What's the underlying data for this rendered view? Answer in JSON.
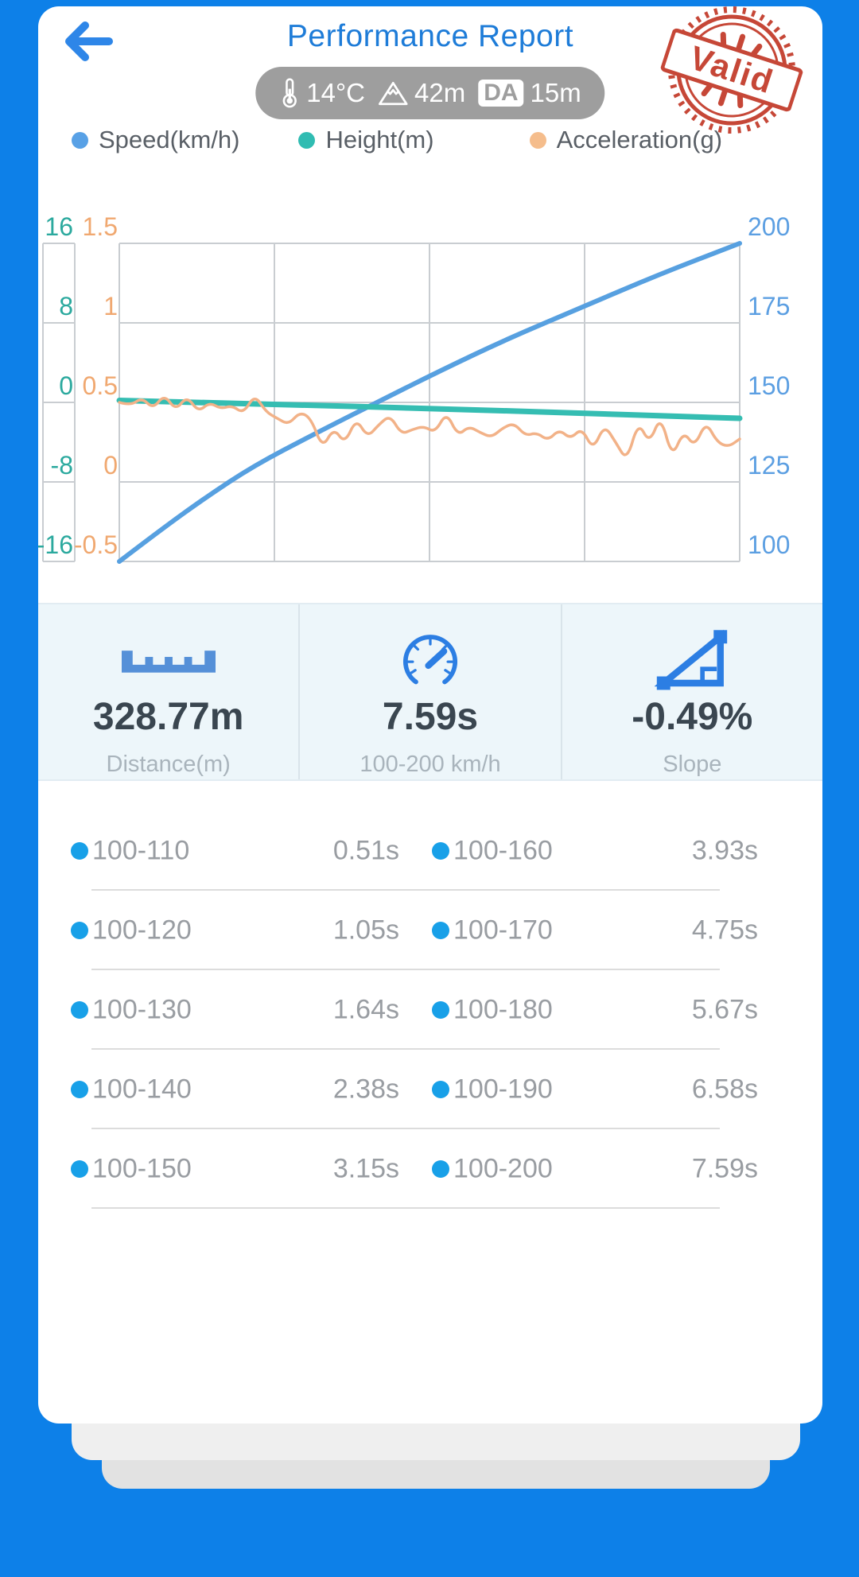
{
  "colors": {
    "background": "#0d80e8",
    "title": "#1e7cd8",
    "back_arrow": "#2e86e8",
    "pill_bg": "#9e9e9e",
    "stamp_red": "#c23a28",
    "grid": "#c9cdd1",
    "bullet": "#18a0e8",
    "stat_value": "#3a4650",
    "stat_label": "#a9b4bc"
  },
  "header": {
    "title": "Performance Report",
    "stamp_text": "Valid",
    "conditions": {
      "temperature": "14°C",
      "altitude": "42m",
      "da_label": "DA",
      "da_value": "15m"
    }
  },
  "legend": [
    {
      "label": "Speed(km/h)",
      "color": "#58a1e6"
    },
    {
      "label": "Height(m)",
      "color": "#30bcb2"
    },
    {
      "label": "Acceleration(g)",
      "color": "#f5bd8c"
    }
  ],
  "chart_data": {
    "type": "line",
    "title": "",
    "xlabel": "",
    "x_range": [
      0,
      7.59
    ],
    "x_gridlines": 5,
    "grid": true,
    "axes": {
      "height_left": {
        "label": "Height(m)",
        "color": "#2ba99e",
        "ticks": [
          16,
          8,
          0,
          -8,
          -16
        ],
        "range": [
          -16,
          16
        ]
      },
      "acceleration_left": {
        "label": "Acceleration(g)",
        "color": "#f0a870",
        "ticks": [
          1.5,
          1,
          0.5,
          0,
          -0.5
        ],
        "range": [
          -0.5,
          1.5
        ]
      },
      "speed_right": {
        "label": "Speed(km/h)",
        "color": "#5c9fe2",
        "ticks": [
          200,
          175,
          150,
          125,
          100
        ],
        "range": [
          100,
          200
        ]
      }
    },
    "series": [
      {
        "name": "Speed(km/h)",
        "axis": "speed_right",
        "color": "#57a0e0",
        "width": 6,
        "x": [
          0,
          0.51,
          1.05,
          1.64,
          2.38,
          3.15,
          3.93,
          4.75,
          5.67,
          6.58,
          7.59
        ],
        "y": [
          100,
          110,
          120,
          130,
          140,
          150,
          160,
          170,
          180,
          190,
          200
        ]
      },
      {
        "name": "Height(m)",
        "axis": "height_left",
        "color": "#35bdb2",
        "width": 7,
        "x": [
          0,
          1.9,
          3.8,
          5.7,
          7.59
        ],
        "y": [
          0.2,
          -0.2,
          -0.6,
          -1.1,
          -1.6
        ]
      },
      {
        "name": "Acceleration(g)",
        "axis": "acceleration_left",
        "color": "#f2b288",
        "width": 3.5,
        "x_even_range": [
          0,
          7.59
        ],
        "y": [
          0.5,
          0.48,
          0.53,
          0.46,
          0.55,
          0.45,
          0.54,
          0.44,
          0.5,
          0.46,
          0.48,
          0.43,
          0.55,
          0.44,
          0.4,
          0.36,
          0.44,
          0.4,
          0.21,
          0.34,
          0.24,
          0.4,
          0.28,
          0.36,
          0.42,
          0.3,
          0.33,
          0.35,
          0.31,
          0.44,
          0.29,
          0.35,
          0.31,
          0.28,
          0.34,
          0.37,
          0.29,
          0.31,
          0.26,
          0.33,
          0.27,
          0.34,
          0.2,
          0.36,
          0.25,
          0.13,
          0.38,
          0.24,
          0.42,
          0.15,
          0.32,
          0.22,
          0.38,
          0.25,
          0.22,
          0.27
        ]
      }
    ]
  },
  "stats": [
    {
      "icon": "ruler-icon",
      "value": "328.77m",
      "label": "Distance(m)"
    },
    {
      "icon": "gauge-icon",
      "value": "7.59s",
      "label": "100-200 km/h"
    },
    {
      "icon": "slope-icon",
      "value": "-0.49%",
      "label": "Slope"
    }
  ],
  "intervals": {
    "rows": [
      {
        "left": {
          "range": "100-110",
          "time": "0.51s"
        },
        "right": {
          "range": "100-160",
          "time": "3.93s"
        }
      },
      {
        "left": {
          "range": "100-120",
          "time": "1.05s"
        },
        "right": {
          "range": "100-170",
          "time": "4.75s"
        }
      },
      {
        "left": {
          "range": "100-130",
          "time": "1.64s"
        },
        "right": {
          "range": "100-180",
          "time": "5.67s"
        }
      },
      {
        "left": {
          "range": "100-140",
          "time": "2.38s"
        },
        "right": {
          "range": "100-190",
          "time": "6.58s"
        }
      },
      {
        "left": {
          "range": "100-150",
          "time": "3.15s"
        },
        "right": {
          "range": "100-200",
          "time": "7.59s"
        }
      }
    ]
  }
}
